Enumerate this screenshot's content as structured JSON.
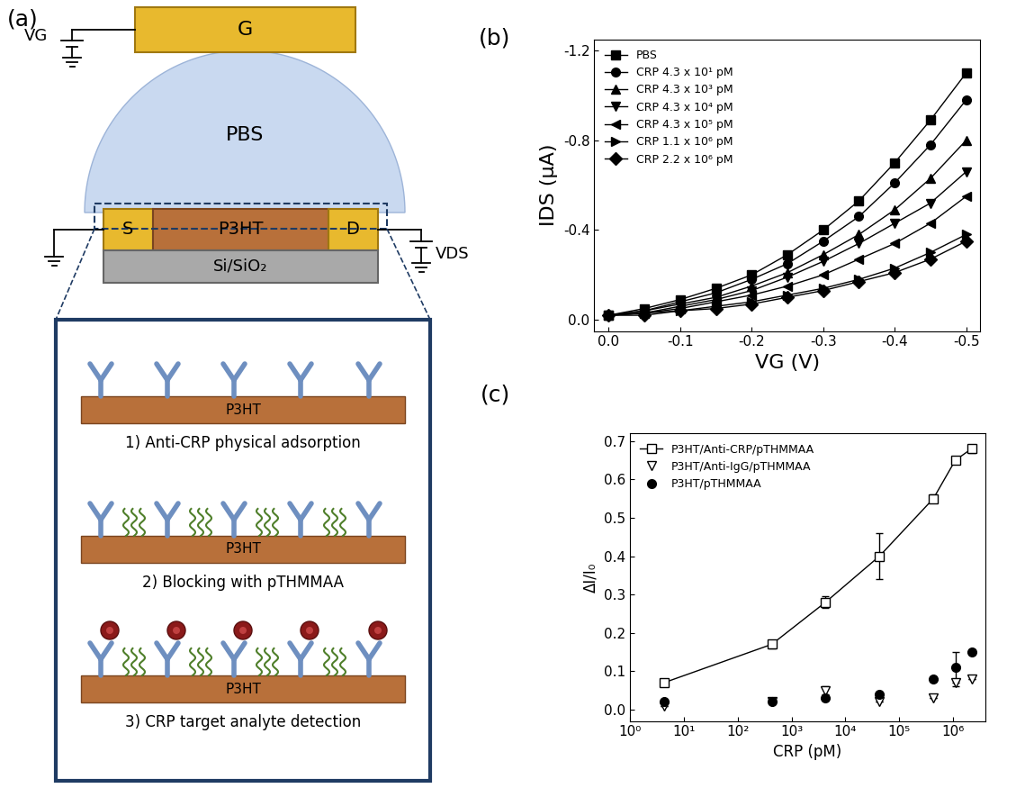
{
  "diagram": {
    "panel_label": "(a)",
    "gate_voltage": "VG",
    "gate": "G",
    "electrolyte": "PBS",
    "source": "S",
    "semiconductor": "P3HT",
    "drain": "D",
    "substrate": "Si/SiO₂",
    "drain_voltage": "VDS",
    "steps": [
      {
        "label": "1) Anti-CRP physical adsorption",
        "layer": "P3HT"
      },
      {
        "label": "2) Blocking with pTHMMAA",
        "layer": "P3HT"
      },
      {
        "label": "3) CRP target analyte detection",
        "layer": "P3HT"
      }
    ]
  },
  "chart_data": [
    {
      "type": "line",
      "annotations": [
        "(b)"
      ],
      "x_label": "VG (V)",
      "y_label": "IDS (μA)",
      "x": [
        0.0,
        -0.05,
        -0.1,
        -0.15,
        -0.2,
        -0.25,
        -0.3,
        -0.35,
        -0.4,
        -0.45,
        -0.5
      ],
      "xlim": [
        0.02,
        -0.52
      ],
      "xticks": [
        0.0,
        -0.1,
        -0.2,
        -0.3,
        -0.4,
        -0.5
      ],
      "ylim": [
        0.05,
        -1.25
      ],
      "yticks": [
        0.0,
        -0.4,
        -0.8,
        -1.2
      ],
      "legend": "upper left",
      "series": [
        {
          "name": "PBS",
          "color": "#000000",
          "marker": "square",
          "line_style": "solid",
          "values": [
            -0.02,
            -0.05,
            -0.09,
            -0.14,
            -0.2,
            -0.29,
            -0.4,
            -0.53,
            -0.7,
            -0.89,
            -1.1
          ]
        },
        {
          "name": "CRP 4.3 x 10¹ pM",
          "color": "#000000",
          "marker": "circle",
          "line_style": "solid",
          "values": [
            -0.02,
            -0.04,
            -0.08,
            -0.12,
            -0.18,
            -0.25,
            -0.35,
            -0.46,
            -0.61,
            -0.78,
            -0.98
          ]
        },
        {
          "name": "CRP 4.3 x 10³ pM",
          "color": "#000000",
          "marker": "triangle_up",
          "line_style": "solid",
          "values": [
            -0.02,
            -0.04,
            -0.07,
            -0.1,
            -0.15,
            -0.21,
            -0.29,
            -0.38,
            -0.49,
            -0.63,
            -0.8
          ]
        },
        {
          "name": "CRP 4.3 x 10⁴ pM",
          "color": "#000000",
          "marker": "triangle_down",
          "line_style": "solid",
          "values": [
            -0.02,
            -0.03,
            -0.06,
            -0.09,
            -0.13,
            -0.19,
            -0.26,
            -0.34,
            -0.43,
            -0.52,
            -0.66
          ]
        },
        {
          "name": "CRP 4.3 x 10⁵ pM",
          "color": "#000000",
          "marker": "triangle_left",
          "line_style": "solid",
          "values": [
            -0.02,
            -0.03,
            -0.05,
            -0.08,
            -0.11,
            -0.15,
            -0.2,
            -0.27,
            -0.34,
            -0.43,
            -0.55
          ]
        },
        {
          "name": "CRP 1.1 x 10⁶ pM",
          "color": "#000000",
          "marker": "triangle_right",
          "line_style": "solid",
          "values": [
            -0.02,
            -0.03,
            -0.04,
            -0.06,
            -0.08,
            -0.11,
            -0.14,
            -0.18,
            -0.23,
            -0.3,
            -0.38
          ]
        },
        {
          "name": "CRP 2.2 x 10⁶ pM",
          "color": "#000000",
          "marker": "diamond",
          "line_style": "solid",
          "values": [
            -0.02,
            -0.02,
            -0.04,
            -0.05,
            -0.07,
            -0.1,
            -0.13,
            -0.17,
            -0.21,
            -0.27,
            -0.35
          ]
        }
      ]
    },
    {
      "type": "scatter",
      "annotations": [
        "(c)"
      ],
      "x_label": "CRP (pM)",
      "y_label": "ΔI/I₀",
      "log": "x",
      "x": [
        4.3,
        430,
        4300,
        43000,
        430000,
        1100000,
        2200000
      ],
      "xlim": [
        1,
        4000000
      ],
      "xticks": [
        {
          "value": 1,
          "label": "10⁰"
        },
        {
          "value": 10,
          "label": "10¹"
        },
        {
          "value": 100,
          "label": "10²"
        },
        {
          "value": 1000,
          "label": "10³"
        },
        {
          "value": 10000,
          "label": "10⁴"
        },
        {
          "value": 100000,
          "label": "10⁵"
        },
        {
          "value": 1000000,
          "label": "10⁶"
        }
      ],
      "ylim": [
        -0.03,
        0.72
      ],
      "yticks": [
        0.0,
        0.1,
        0.2,
        0.3,
        0.4,
        0.5,
        0.6,
        0.7
      ],
      "legend": "upper left",
      "series": [
        {
          "name": "P3HT/Anti-CRP/pTHMMAA",
          "color": "#000000",
          "marker": "open_square",
          "line_style": "solid",
          "values": [
            0.07,
            0.17,
            0.28,
            0.4,
            0.55,
            0.65,
            0.68
          ],
          "errors": [
            0.01,
            0.01,
            0.015,
            0.06,
            0.01,
            0.01,
            0.01
          ]
        },
        {
          "name": "P3HT/Anti-IgG/pTHMMAA",
          "color": "#000000",
          "marker": "open_triangle_down",
          "line_style": "none",
          "values": [
            0.01,
            0.02,
            0.05,
            0.02,
            0.03,
            0.07,
            0.08
          ],
          "errors": [
            0.0,
            0.0,
            0.01,
            0.0,
            0.0,
            0.01,
            0.0
          ]
        },
        {
          "name": "P3HT/pTHMMAA",
          "color": "#000000",
          "marker": "circle",
          "line_style": "none",
          "values": [
            0.02,
            0.02,
            0.03,
            0.04,
            0.08,
            0.11,
            0.15
          ],
          "errors": [
            0.0,
            0.0,
            0.0,
            0.0,
            0.0,
            0.04,
            0.0
          ]
        }
      ]
    }
  ]
}
